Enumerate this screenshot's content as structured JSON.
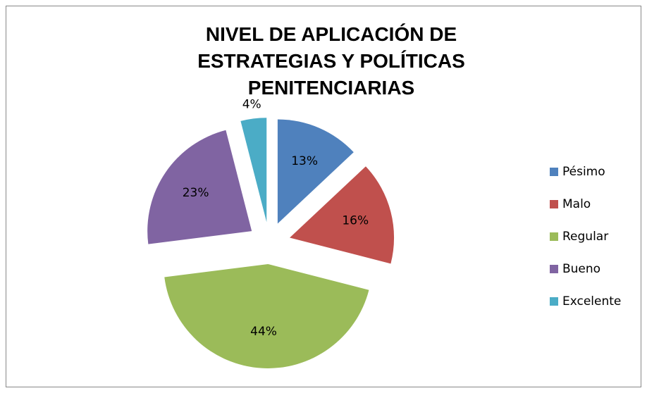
{
  "chart_data": {
    "type": "pie",
    "title": "NIVEL DE APLICACIÓN DE ESTRATEGIAS Y POLÍTICAS PENITENCIARIAS",
    "categories": [
      "Pésimo",
      "Malo",
      "Regular",
      "Bueno",
      "Excelente"
    ],
    "values": [
      13,
      16,
      44,
      23,
      4
    ],
    "value_labels": [
      "13%",
      "16%",
      "44%",
      "23%",
      "4%"
    ],
    "colors": [
      "#4f81bd",
      "#c0504d",
      "#9bbb59",
      "#8064a2",
      "#4bacc6"
    ],
    "legend": "right"
  }
}
